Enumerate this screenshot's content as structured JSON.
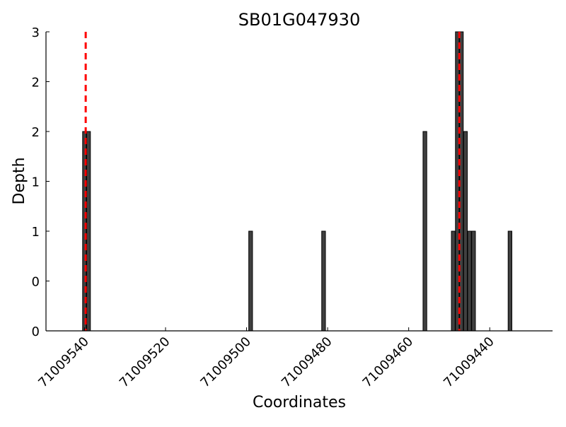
{
  "chart_data": {
    "type": "bar",
    "title": "SB01G047930",
    "xlabel": "Coordinates",
    "ylabel": "Depth",
    "x_reversed": true,
    "xlim": [
      71009549.5,
      71009424.5
    ],
    "ylim": [
      0,
      3
    ],
    "x_ticks": [
      71009540,
      71009520,
      71009500,
      71009480,
      71009460,
      71009440
    ],
    "x_tick_labels": [
      "71009540",
      "71009520",
      "71009500",
      "71009480",
      "71009460",
      "71009440"
    ],
    "y_ticks": [
      0,
      0.5,
      1,
      1.5,
      2,
      2.5,
      3
    ],
    "y_tick_labels": [
      "0",
      "0",
      "1",
      "1",
      "2",
      "2",
      "3"
    ],
    "bars": [
      {
        "x": 71009540,
        "depth": 2
      },
      {
        "x": 71009539,
        "depth": 2
      },
      {
        "x": 71009499,
        "depth": 1
      },
      {
        "x": 71009481,
        "depth": 1
      },
      {
        "x": 71009456,
        "depth": 2
      },
      {
        "x": 71009449,
        "depth": 1
      },
      {
        "x": 71009448,
        "depth": 3
      },
      {
        "x": 71009447,
        "depth": 3
      },
      {
        "x": 71009446,
        "depth": 2
      },
      {
        "x": 71009445,
        "depth": 1
      },
      {
        "x": 71009444,
        "depth": 1
      },
      {
        "x": 71009435,
        "depth": 1
      }
    ],
    "markers": [
      {
        "x": 71009539.7,
        "style": "dashed",
        "color": "#ff0000"
      },
      {
        "x": 71009447.5,
        "style": "dashed",
        "color": "#ff0000"
      }
    ],
    "bar_color": "#404040",
    "bar_edge_color": "#000000",
    "grid": false,
    "legend": "none"
  }
}
